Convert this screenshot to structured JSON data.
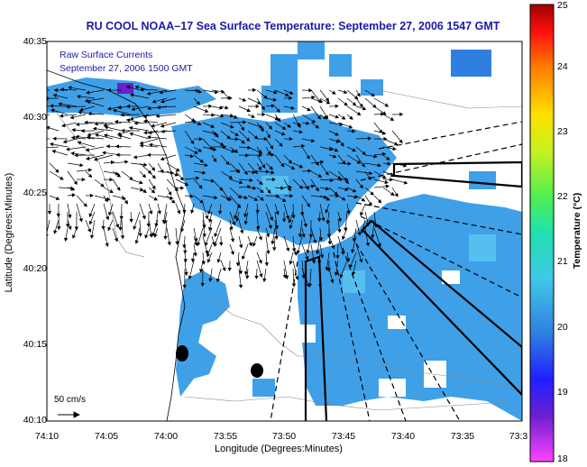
{
  "title": "RU COOL  NOAA–17  Sea Surface Temperature:  September 27, 2006 1547 GMT",
  "overlay": {
    "line1": "Raw Surface Currents",
    "line2": "September 27, 2006 1500 GMT"
  },
  "axes": {
    "xlabel": "Longitude (Degrees:Minutes)",
    "ylabel": "Latitude (Degrees:Minutes)",
    "xticks": [
      "74:10",
      "74:05",
      "74:00",
      "73:55",
      "73:50",
      "73:45",
      "73:40",
      "73:35",
      "73:3"
    ],
    "yticks": [
      "40:35",
      "40:30",
      "40:25",
      "40:20",
      "40:15",
      "40:10"
    ]
  },
  "scale": {
    "label": "50 cm/s"
  },
  "colorbar": {
    "label": "Temperature (°C)",
    "ticks": [
      "25",
      "24",
      "23",
      "22",
      "21",
      "20",
      "19",
      "18"
    ],
    "min": 18,
    "max": 25
  },
  "colors": {
    "title": "#1a1aa8",
    "sst_primary": "#3fa0e8",
    "sst_light": "#55c0f0",
    "sst_dark": "#2f7fe0"
  },
  "icons": {
    "arrows": "current-vector-arrows",
    "markers": "buoy-marker-dots"
  }
}
